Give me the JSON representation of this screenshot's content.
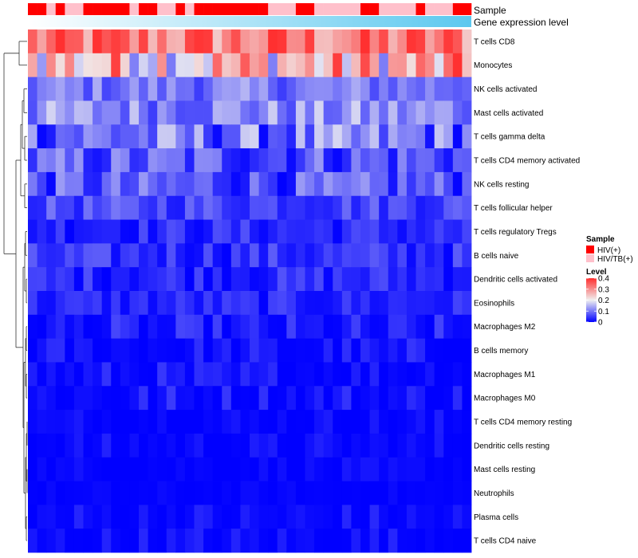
{
  "chart_data": {
    "type": "heatmap",
    "annotation_rows": [
      "Sample",
      "Gene expression level"
    ],
    "sample_groups": [
      "HIV(+)",
      "HIV(+)",
      "HIV/TB(+)",
      "HIV(+)",
      "HIV/TB(+)",
      "HIV/TB(+)",
      "HIV(+)",
      "HIV(+)",
      "HIV(+)",
      "HIV(+)",
      "HIV(+)",
      "HIV/TB(+)",
      "HIV(+)",
      "HIV(+)",
      "HIV/TB(+)",
      "HIV/TB(+)",
      "HIV(+)",
      "HIV/TB(+)",
      "HIV(+)",
      "HIV(+)",
      "HIV(+)",
      "HIV(+)",
      "HIV(+)",
      "HIV(+)",
      "HIV(+)",
      "HIV(+)",
      "HIV/TB(+)",
      "HIV/TB(+)",
      "HIV/TB(+)",
      "HIV(+)",
      "HIV(+)",
      "HIV/TB(+)",
      "HIV/TB(+)",
      "HIV/TB(+)",
      "HIV/TB(+)",
      "HIV/TB(+)",
      "HIV(+)",
      "HIV(+)",
      "HIV/TB(+)",
      "HIV/TB(+)",
      "HIV/TB(+)",
      "HIV/TB(+)",
      "HIV(+)",
      "HIV/TB(+)",
      "HIV/TB(+)",
      "HIV/TB(+)",
      "HIV(+)",
      "HIV(+)"
    ],
    "rows": [
      "T cells CD8",
      "Monocytes",
      "NK cells activated",
      "Mast cells activated",
      "T cells gamma delta",
      "T cells CD4 memory activated",
      "NK cells resting",
      "T cells follicular helper",
      "T cells regulatory  Tregs",
      "B cells naive",
      "Dendritic cells activated",
      "Eosinophils",
      "Macrophages M2",
      "B cells memory",
      "Macrophages M1",
      "Macrophages M0",
      "T cells CD4 memory resting",
      "Dendritic cells resting",
      "Mast cells resting",
      "Neutrophils",
      "Plasma cells",
      "T cells CD4 naive"
    ],
    "row_level_ranges": [
      [
        0.22,
        0.42
      ],
      [
        0.1,
        0.4
      ],
      [
        0.05,
        0.15
      ],
      [
        0.05,
        0.18
      ],
      [
        0.0,
        0.18
      ],
      [
        0.0,
        0.14
      ],
      [
        0.0,
        0.13
      ],
      [
        0.02,
        0.1
      ],
      [
        0.0,
        0.07
      ],
      [
        0.0,
        0.08
      ],
      [
        0.0,
        0.07
      ],
      [
        0.0,
        0.06
      ],
      [
        0.0,
        0.06
      ],
      [
        0.0,
        0.05
      ],
      [
        0.0,
        0.05
      ],
      [
        0.0,
        0.06
      ],
      [
        0.0,
        0.03
      ],
      [
        0.0,
        0.03
      ],
      [
        0.0,
        0.02
      ],
      [
        0.0,
        0.01
      ],
      [
        0.0,
        0.04
      ],
      [
        0.0,
        0.04
      ]
    ],
    "color_scale": {
      "low": "#0000ff",
      "mid": "#f0f0f0",
      "high": "#ff3030",
      "min": 0,
      "max": 0.4
    },
    "legend": {
      "position": "right",
      "sample_title": "Sample",
      "sample_items": [
        {
          "label": "HIV(+)",
          "color": "#ff0000"
        },
        {
          "label": "HIV/TB(+)",
          "color": "#ffc0cb"
        }
      ],
      "level_title": "Level",
      "level_ticks": [
        {
          "value": 0.4,
          "label": "0.4"
        },
        {
          "value": 0.3,
          "label": "0.3"
        },
        {
          "value": 0.2,
          "label": "0.2"
        },
        {
          "value": 0.1,
          "label": "0.1"
        },
        {
          "value": 0,
          "label": "0"
        }
      ]
    },
    "expression_gradient": [
      "#ffffff",
      "#5bc8ef"
    ]
  }
}
